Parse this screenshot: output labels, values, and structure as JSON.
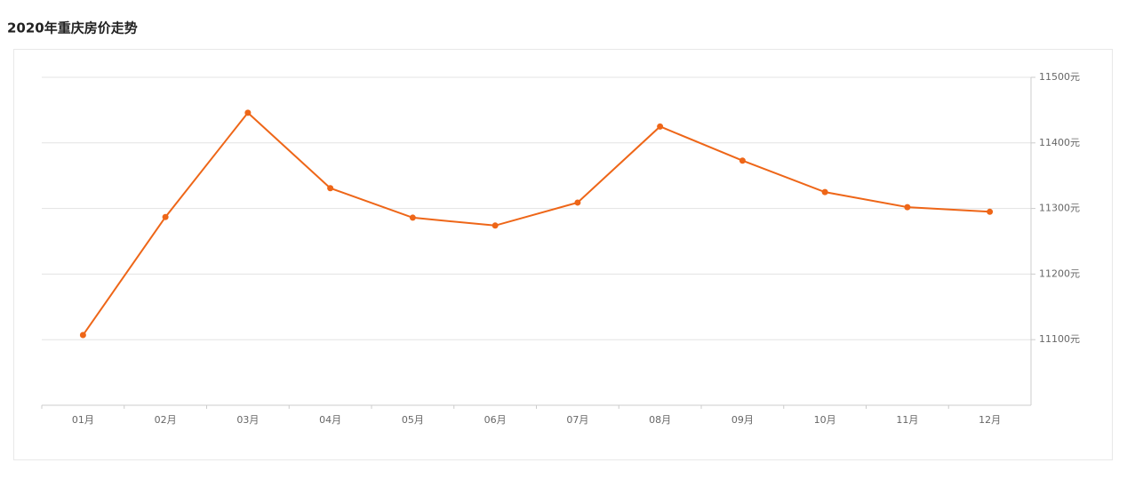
{
  "chart_data": {
    "type": "line",
    "title": "2020年重庆房价走势",
    "categories": [
      "01月",
      "02月",
      "03月",
      "04月",
      "05月",
      "06月",
      "07月",
      "08月",
      "09月",
      "10月",
      "11月",
      "12月"
    ],
    "series": [
      {
        "color": "#ee6618",
        "values": [
          11107,
          11287,
          11446,
          11331,
          11286,
          11274,
          11309,
          11425,
          11373,
          11325,
          11302,
          11295
        ]
      }
    ],
    "ylim": [
      11000,
      11500
    ],
    "yticks": [
      {
        "value": 11100,
        "label": "11100元"
      },
      {
        "value": 11200,
        "label": "11200元"
      },
      {
        "value": 11300,
        "label": "11300元"
      },
      {
        "value": 11400,
        "label": "11400元"
      },
      {
        "value": 11500,
        "label": "11500元"
      }
    ],
    "grid": true
  }
}
